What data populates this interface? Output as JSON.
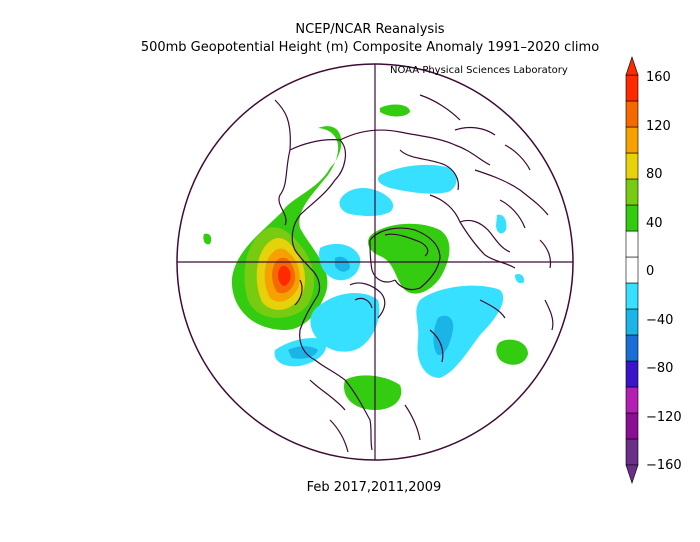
{
  "title_line1": "NCEP/NCAR Reanalysis",
  "title_line2": "500mb Geopotential Height (m) Composite Anomaly 1991–2020 climo",
  "credit": "NOAA Physical Sciences Laboratory",
  "period": "Feb 2017,2011,2009",
  "colorbar": {
    "ticks": [
      "160",
      "120",
      "80",
      "40",
      "0",
      "−40",
      "−80",
      "−120",
      "−160"
    ],
    "bands": [
      "#6b2f8a",
      "#8b0f93",
      "#b21fb2",
      "#3a14c8",
      "#1a6fd6",
      "#1ab4e6",
      "#38e0ff",
      "#ffffff",
      "#ffffff",
      "#33cc11",
      "#77cc11",
      "#e6d20a",
      "#f5a200",
      "#f56a00",
      "#ff2a00"
    ]
  }
}
